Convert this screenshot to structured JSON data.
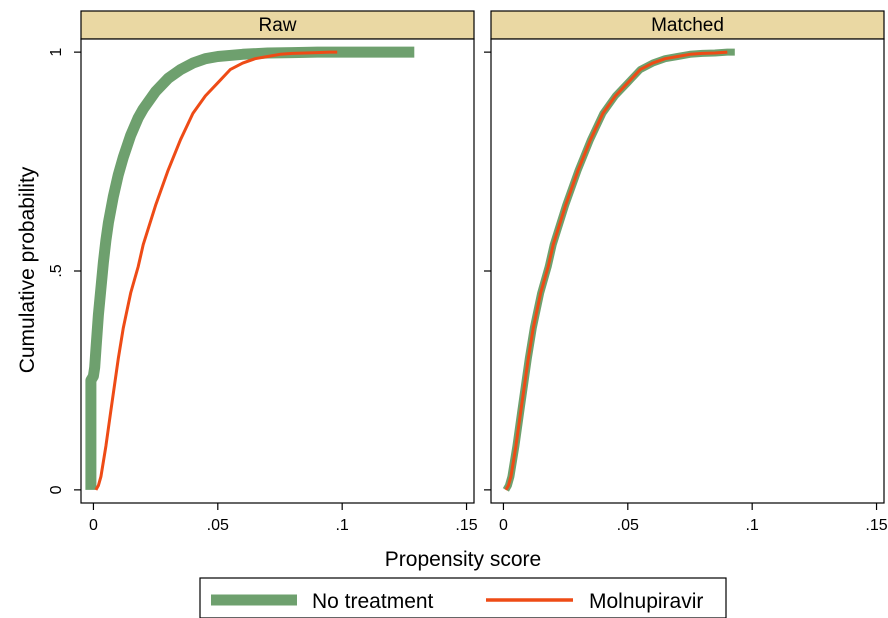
{
  "chart_data": {
    "type": "line",
    "xlabel": "Propensity score",
    "ylabel": "Cumulative probability",
    "xlim": [
      -0.005,
      0.153
    ],
    "ylim": [
      -0.03,
      1.03
    ],
    "x_ticks": [
      0,
      0.05,
      0.1,
      0.15
    ],
    "x_tick_labels": [
      "0",
      ".05",
      ".1",
      ".15"
    ],
    "y_ticks": [
      0,
      0.5,
      1
    ],
    "y_tick_labels": [
      "0",
      ".5",
      "1"
    ],
    "legend": {
      "placement": "bottom",
      "entries": [
        "No treatment",
        "Molnupiravir"
      ]
    },
    "colors": {
      "No treatment": "#6ea06e",
      "Molnupiravir": "#ee4b16",
      "strip": "#ead8a3",
      "grid": "#ffffff"
    },
    "panels": [
      {
        "title": "Raw",
        "series": [
          {
            "name": "No treatment",
            "x": [
              -0.001,
              -0.001,
              0,
              0.0005,
              0.001,
              0.002,
              0.003,
              0.004,
              0.005,
              0.006,
              0.008,
              0.01,
              0.012,
              0.015,
              0.018,
              0.02,
              0.025,
              0.03,
              0.035,
              0.04,
              0.045,
              0.05,
              0.06,
              0.07,
              0.08,
              0.09,
              0.1,
              0.129
            ],
            "y": [
              0,
              0.25,
              0.26,
              0.28,
              0.32,
              0.4,
              0.46,
              0.52,
              0.57,
              0.61,
              0.67,
              0.72,
              0.76,
              0.81,
              0.85,
              0.87,
              0.91,
              0.94,
              0.96,
              0.975,
              0.985,
              0.99,
              0.995,
              0.998,
              0.999,
              1,
              1,
              1
            ]
          },
          {
            "name": "Molnupiravir",
            "x": [
              0.001,
              0.002,
              0.003,
              0.005,
              0.007,
              0.01,
              0.012,
              0.015,
              0.018,
              0.02,
              0.025,
              0.03,
              0.035,
              0.04,
              0.045,
              0.05,
              0.055,
              0.06,
              0.065,
              0.07,
              0.075,
              0.08,
              0.085,
              0.09,
              0.095,
              0.098
            ],
            "y": [
              0,
              0.01,
              0.03,
              0.1,
              0.18,
              0.3,
              0.37,
              0.45,
              0.51,
              0.56,
              0.65,
              0.73,
              0.8,
              0.86,
              0.9,
              0.93,
              0.96,
              0.975,
              0.985,
              0.99,
              0.995,
              0.997,
              0.998,
              0.999,
              1,
              1
            ]
          }
        ]
      },
      {
        "title": "Matched",
        "series": [
          {
            "name": "No treatment",
            "x": [
              0.001,
              0.002,
              0.003,
              0.005,
              0.007,
              0.01,
              0.012,
              0.015,
              0.018,
              0.02,
              0.025,
              0.03,
              0.035,
              0.04,
              0.045,
              0.05,
              0.055,
              0.06,
              0.065,
              0.07,
              0.075,
              0.08,
              0.085,
              0.09,
              0.093
            ],
            "y": [
              0,
              0.01,
              0.03,
              0.1,
              0.18,
              0.3,
              0.37,
              0.45,
              0.51,
              0.56,
              0.65,
              0.73,
              0.8,
              0.86,
              0.9,
              0.93,
              0.96,
              0.975,
              0.985,
              0.99,
              0.995,
              0.997,
              0.998,
              1,
              1
            ]
          },
          {
            "name": "Molnupiravir",
            "x": [
              0.001,
              0.002,
              0.003,
              0.005,
              0.007,
              0.01,
              0.012,
              0.015,
              0.018,
              0.02,
              0.025,
              0.03,
              0.035,
              0.04,
              0.045,
              0.05,
              0.055,
              0.06,
              0.065,
              0.07,
              0.075,
              0.08,
              0.085,
              0.09
            ],
            "y": [
              0,
              0.01,
              0.03,
              0.1,
              0.18,
              0.3,
              0.37,
              0.45,
              0.51,
              0.56,
              0.65,
              0.73,
              0.8,
              0.86,
              0.9,
              0.93,
              0.96,
              0.975,
              0.985,
              0.99,
              0.995,
              0.997,
              0.998,
              1
            ]
          }
        ]
      }
    ]
  }
}
